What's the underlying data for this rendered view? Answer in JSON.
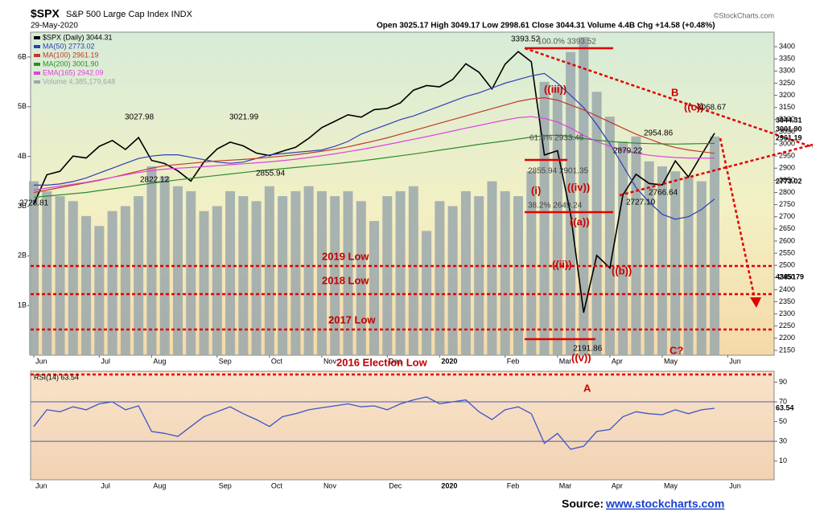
{
  "chart_data": {
    "type": "line",
    "title": "$SPX",
    "subtitle": "S&P 500 Large Cap Index INDX",
    "date": "29-May-2020",
    "quote": "Open 3025.17 High 3049.17 Low 2998.61 Close 3044.31 Volume 4.4B Chg +14.58 (+0.48%)",
    "credit": "©StockCharts.com",
    "source_label": "Source:",
    "source_link": "www.stockcharts.com",
    "categories": [
      "Jun",
      null,
      null,
      null,
      null,
      "Jul",
      null,
      null,
      null,
      "Aug",
      null,
      null,
      null,
      null,
      "Sep",
      null,
      null,
      null,
      "Oct",
      null,
      null,
      null,
      "Nov",
      null,
      null,
      null,
      null,
      "Dec",
      null,
      null,
      null,
      "2020",
      null,
      null,
      null,
      null,
      "Feb",
      null,
      null,
      null,
      "Mar",
      null,
      null,
      null,
      "Apr",
      null,
      null,
      null,
      "May",
      null,
      null,
      null,
      null,
      "Jun"
    ],
    "series": [
      {
        "name": "$SPX (Daily) 3044.31",
        "color": "#000000",
        "values": [
          2752,
          2873,
          2887,
          2950,
          2942,
          2990,
          3014,
          2977,
          3026,
          2932,
          2919,
          2889,
          2847,
          2926,
          2979,
          3007,
          2992,
          2962,
          2952,
          2970,
          2986,
          3023,
          3067,
          3093,
          3120,
          3110,
          3141,
          3146,
          3169,
          3221,
          3240,
          3235,
          3265,
          3330,
          3295,
          3226,
          3328,
          3380,
          3338,
          2954,
          2972,
          2711,
          2305,
          2541,
          2489,
          2790,
          2875,
          2837,
          2831,
          2930,
          2864,
          2955,
          3044,
          null
        ]
      },
      {
        "name": "MA(50) 2773.02",
        "color": "#2b3fb8",
        "values": [
          2830,
          2830,
          2835,
          2845,
          2860,
          2880,
          2900,
          2920,
          2940,
          2950,
          2955,
          2955,
          2945,
          2935,
          2925,
          2920,
          2925,
          2940,
          2955,
          2960,
          2965,
          2970,
          2975,
          2990,
          3010,
          3040,
          3060,
          3080,
          3100,
          3115,
          3135,
          3155,
          3175,
          3195,
          3210,
          3230,
          3250,
          3265,
          3280,
          3290,
          3250,
          3200,
          3150,
          3080,
          3000,
          2910,
          2820,
          2760,
          2710,
          2690,
          2700,
          2730,
          2773,
          null
        ]
      },
      {
        "name": "MA(100) 2961.19",
        "color": "#c0392b",
        "values": [
          2800,
          2810,
          2820,
          2830,
          2840,
          2850,
          2862,
          2875,
          2888,
          2900,
          2910,
          2915,
          2920,
          2925,
          2930,
          2933,
          2936,
          2940,
          2945,
          2950,
          2955,
          2962,
          2970,
          2978,
          2988,
          3000,
          3012,
          3025,
          3040,
          3055,
          3070,
          3085,
          3100,
          3115,
          3130,
          3145,
          3160,
          3175,
          3185,
          3190,
          3180,
          3160,
          3140,
          3115,
          3090,
          3065,
          3040,
          3020,
          3000,
          2985,
          2975,
          2968,
          2961,
          null
        ]
      },
      {
        "name": "MA(200) 3001.90",
        "color": "#2e8b2e",
        "values": [
          2780,
          2785,
          2790,
          2795,
          2800,
          2808,
          2815,
          2822,
          2830,
          2838,
          2845,
          2852,
          2858,
          2864,
          2870,
          2876,
          2882,
          2888,
          2893,
          2898,
          2903,
          2908,
          2913,
          2918,
          2924,
          2930,
          2937,
          2944,
          2951,
          2958,
          2966,
          2974,
          2982,
          2990,
          2998,
          3005,
          3012,
          3020,
          3028,
          3034,
          3036,
          3030,
          3022,
          3015,
          3010,
          3006,
          3003,
          3001,
          3000,
          2999,
          3000,
          3001,
          3002,
          null
        ]
      },
      {
        "name": "EMA(165) 2942.09",
        "color": "#e040e0",
        "values": [
          2810,
          2818,
          2826,
          2834,
          2842,
          2852,
          2862,
          2872,
          2882,
          2890,
          2896,
          2900,
          2903,
          2906,
          2910,
          2914,
          2918,
          2922,
          2926,
          2931,
          2937,
          2944,
          2951,
          2959,
          2968,
          2977,
          2987,
          2997,
          3008,
          3019,
          3030,
          3041,
          3053,
          3065,
          3076,
          3087,
          3098,
          3108,
          3112,
          3105,
          3090,
          3065,
          3035,
          3010,
          2990,
          2975,
          2962,
          2953,
          2948,
          2944,
          2942,
          2941,
          2942,
          null
        ]
      },
      {
        "name": "Volume 4,385,179,648",
        "color": "#9aa8ad",
        "axis": "y2",
        "values": [
          3.5,
          3.3,
          3.2,
          3.1,
          2.8,
          2.6,
          2.9,
          3.0,
          3.2,
          3.8,
          3.6,
          3.4,
          3.3,
          2.9,
          3.0,
          3.3,
          3.2,
          3.1,
          3.4,
          3.2,
          3.3,
          3.4,
          3.3,
          3.2,
          3.3,
          3.1,
          2.7,
          3.2,
          3.3,
          3.4,
          2.5,
          3.1,
          3.0,
          3.3,
          3.2,
          3.5,
          3.3,
          3.2,
          3.7,
          5.5,
          5.4,
          6.1,
          6.4,
          5.3,
          4.8,
          4.3,
          4.4,
          3.9,
          3.8,
          3.7,
          3.6,
          3.5,
          4.4,
          null
        ]
      }
    ],
    "ylim": [
      2130,
      3460
    ],
    "yticks": [
      2150,
      2200,
      2250,
      2300,
      2350,
      2400,
      2450,
      2500,
      2550,
      2600,
      2650,
      2700,
      2750,
      2800,
      2850,
      2900,
      2950,
      3000,
      3050,
      3100,
      3150,
      3200,
      3250,
      3300,
      3350,
      3400
    ],
    "y2lim": [
      0,
      6.5
    ],
    "y2ticks": [
      {
        "value": 1,
        "label": "1B"
      },
      {
        "value": 2,
        "label": "2B"
      },
      {
        "value": 3,
        "label": "3B"
      },
      {
        "value": 4,
        "label": "4B"
      },
      {
        "value": 5,
        "label": "5B"
      },
      {
        "value": 6,
        "label": "6B"
      }
    ],
    "rsi": {
      "name": "RSI(14) 63.54",
      "color": "#3b55c8",
      "values": [
        45,
        62,
        60,
        65,
        62,
        68,
        70,
        62,
        66,
        40,
        38,
        35,
        45,
        55,
        60,
        65,
        58,
        52,
        45,
        55,
        58,
        62,
        64,
        66,
        68,
        65,
        66,
        62,
        68,
        72,
        75,
        68,
        70,
        72,
        60,
        52,
        62,
        65,
        58,
        28,
        38,
        22,
        25,
        40,
        42,
        55,
        60,
        58,
        57,
        62,
        58,
        62,
        63.54,
        null
      ],
      "ylim": [
        -9,
        101
      ],
      "yticks": [
        10,
        30,
        50,
        70,
        90
      ]
    },
    "annotations": [
      "3393.52",
      "100.0% 3393.52",
      "3027.98",
      "3021.99",
      "2822.12",
      "2855.94",
      "2728.81",
      "((iii))",
      "61.8% 2933.46",
      "(i)",
      "2855.94 2901.35",
      "((iv))",
      "38.2% 2649.24",
      "((a))",
      "((ii))",
      "((b))",
      "2191.86",
      "((v))",
      "B",
      "((c))",
      "3068.67",
      "2954.86",
      "2879.22",
      "2727.10",
      "2766.64",
      "2019 Low",
      "2018 Low",
      "2017 Low",
      "2016 Election Low",
      "C?",
      "A",
      "3044.31",
      "3001.90",
      "2961.19",
      "2773.02",
      "4385179",
      "63.54"
    ]
  }
}
